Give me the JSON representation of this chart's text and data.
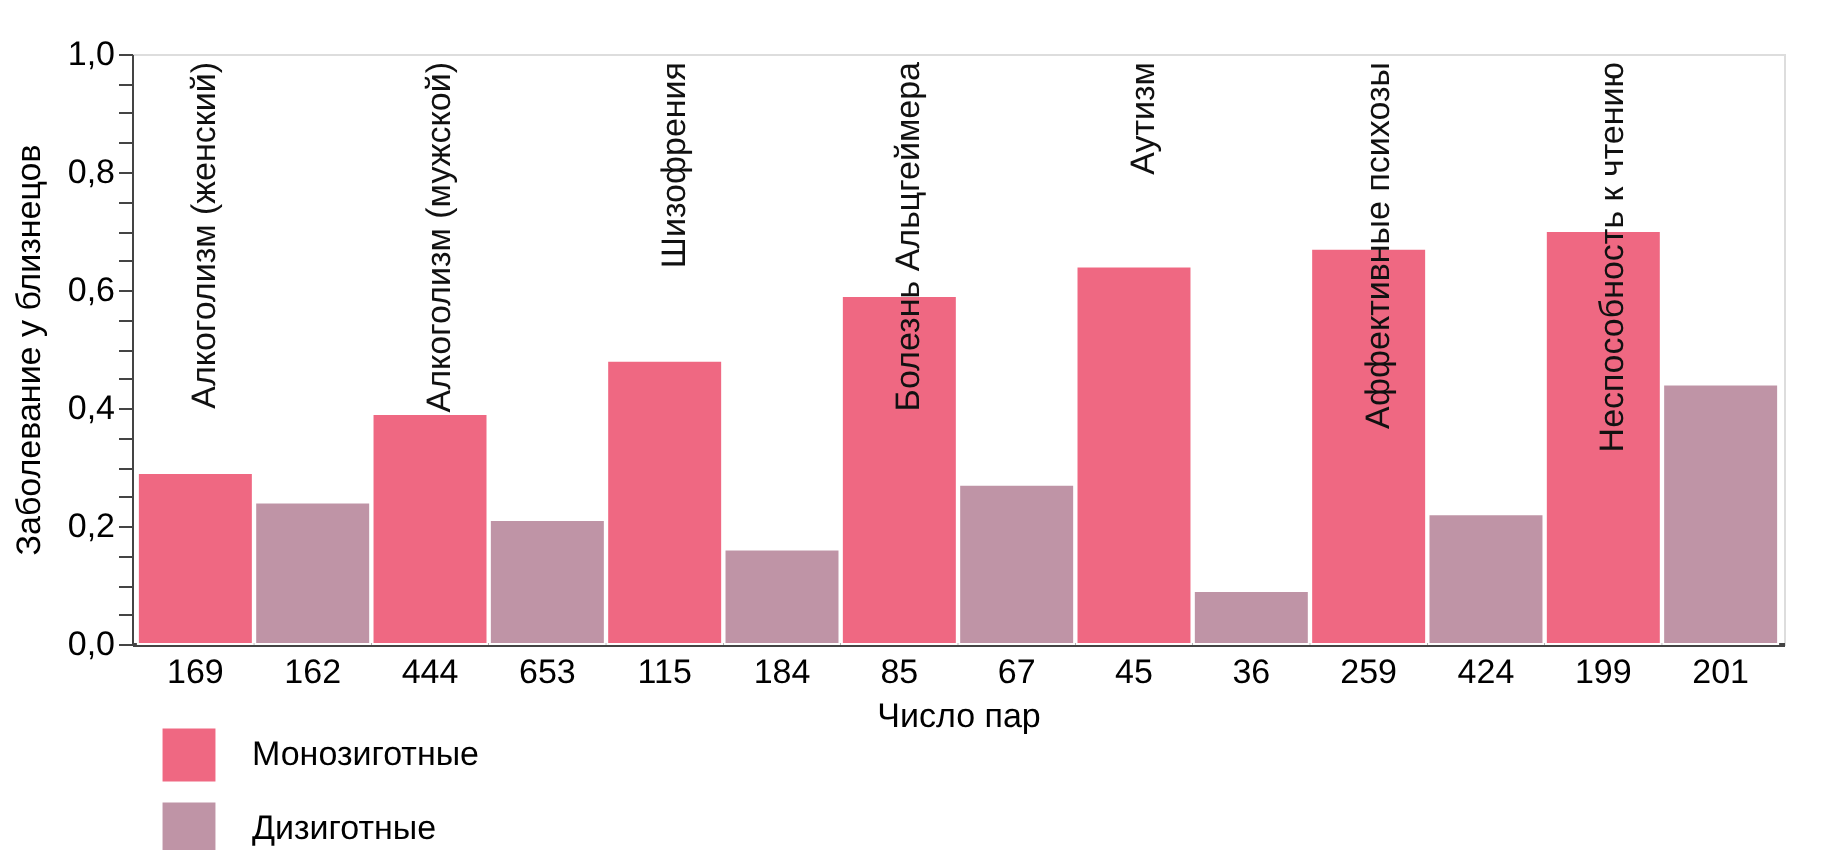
{
  "chart_data": {
    "type": "bar",
    "ylabel": "Заболевание у близнецов",
    "xlabel": "Число пар",
    "categories": [
      "169",
      "162",
      "444",
      "653",
      "115",
      "184",
      "85",
      "67",
      "45",
      "36",
      "259",
      "424",
      "199",
      "201"
    ],
    "series": [
      {
        "name": "Монозиготные",
        "color": "#ef6882",
        "values": [
          0.29,
          null,
          0.39,
          null,
          0.48,
          null,
          0.59,
          null,
          0.64,
          null,
          0.67,
          null,
          0.7,
          null
        ]
      },
      {
        "name": "Дизиготные",
        "color": "#bf94a6",
        "values": [
          null,
          0.24,
          null,
          0.21,
          null,
          0.16,
          null,
          0.27,
          null,
          0.09,
          null,
          0.22,
          null,
          0.44
        ]
      }
    ],
    "ylim": [
      0,
      1
    ],
    "yticks": [
      {
        "value": 0,
        "label": "0,0"
      },
      {
        "value": 0.05,
        "label": null
      },
      {
        "value": 0.1,
        "label": null
      },
      {
        "value": 0.15,
        "label": null
      },
      {
        "value": 0.2,
        "label": "0,2"
      },
      {
        "value": 0.25,
        "label": null
      },
      {
        "value": 0.3,
        "label": null
      },
      {
        "value": 0.35,
        "label": null
      },
      {
        "value": 0.4,
        "label": "0,4"
      },
      {
        "value": 0.45,
        "label": null
      },
      {
        "value": 0.5,
        "label": null
      },
      {
        "value": 0.55,
        "label": null
      },
      {
        "value": 0.6,
        "label": "0,6"
      },
      {
        "value": 0.65,
        "label": null
      },
      {
        "value": 0.7,
        "label": null
      },
      {
        "value": 0.75,
        "label": null
      },
      {
        "value": 0.8,
        "label": "0,8"
      },
      {
        "value": 0.85,
        "label": null
      },
      {
        "value": 0.9,
        "label": null
      },
      {
        "value": 0.95,
        "label": null
      },
      {
        "value": 1,
        "label": "1,0"
      }
    ],
    "annotations": [
      "Алкоголизм (женский)",
      "Алкоголизм (мужской)",
      "Шизофрения",
      "Болезнь Альцгеймера",
      "Аутизм",
      "Аффективные психозы",
      "Неспособность к чтению"
    ],
    "grid": false,
    "legend": "bottom left"
  }
}
